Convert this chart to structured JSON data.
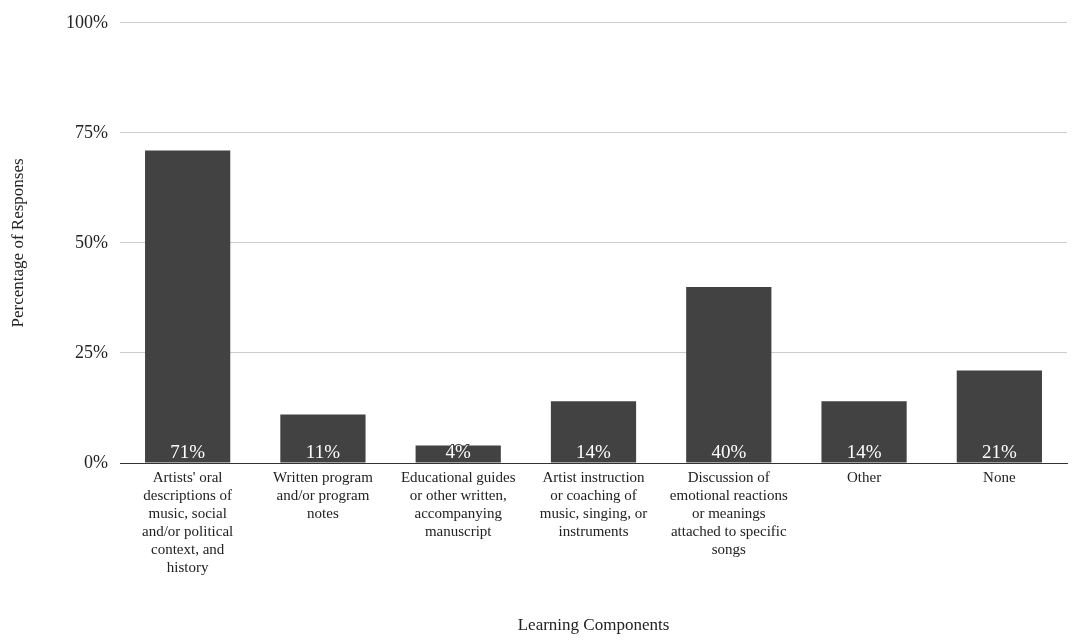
{
  "chart_data": {
    "type": "bar",
    "xlabel": "Learning Components",
    "ylabel": "Percentage of Responses",
    "categories": [
      "Artists' oral descriptions of music, social and/or political context, and history",
      "Written program and/or program notes",
      "Educational guides or other written, accompanying manuscript",
      "Artist instruction or coaching of music, singing, or instruments",
      "Discussion of emotional reactions or meanings attached to specific songs",
      "Other",
      "None"
    ],
    "values": [
      71,
      11,
      4,
      14,
      40,
      14,
      21
    ],
    "value_labels": [
      "71%",
      "11%",
      "4%",
      "14%",
      "40%",
      "14%",
      "21%"
    ],
    "color": "#424242",
    "ylim": [
      0,
      100
    ],
    "yticks": [
      {
        "value": 0,
        "label": "0%"
      },
      {
        "value": 25,
        "label": "25%"
      },
      {
        "value": 50,
        "label": "50%"
      },
      {
        "value": 75,
        "label": "75%"
      },
      {
        "value": 100,
        "label": "100%"
      }
    ],
    "grid": "y",
    "legend": false
  }
}
